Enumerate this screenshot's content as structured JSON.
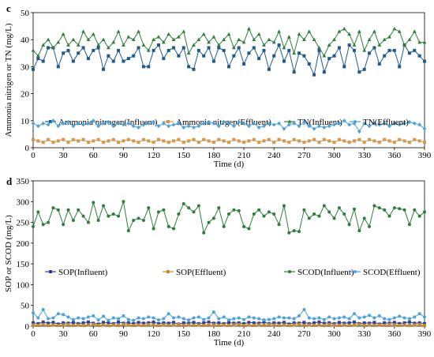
{
  "chart_data": [
    {
      "panel": "c",
      "type": "line",
      "xlabel": "Time (d)",
      "ylabel": "Ammonia nitrigen or TN (mg/L)",
      "xlim": [
        0,
        390
      ],
      "ylim": [
        0,
        50
      ],
      "xticks": [
        0,
        30,
        60,
        90,
        120,
        150,
        180,
        210,
        240,
        270,
        300,
        330,
        360,
        390
      ],
      "yticks": [
        0,
        10,
        20,
        30,
        40,
        50
      ],
      "x": [
        0,
        5,
        10,
        15,
        20,
        25,
        30,
        35,
        40,
        45,
        50,
        55,
        60,
        65,
        70,
        75,
        80,
        85,
        90,
        95,
        100,
        105,
        110,
        115,
        120,
        125,
        130,
        135,
        140,
        145,
        150,
        155,
        160,
        165,
        170,
        175,
        180,
        185,
        190,
        195,
        200,
        205,
        210,
        215,
        220,
        225,
        230,
        235,
        240,
        245,
        250,
        255,
        260,
        265,
        270,
        275,
        280,
        285,
        290,
        295,
        300,
        305,
        310,
        315,
        320,
        325,
        330,
        335,
        340,
        345,
        350,
        355,
        360,
        365,
        370,
        375,
        380,
        385,
        390
      ],
      "legend_position": "middle",
      "series": [
        {
          "name": "Ammonia nitrogen(Influent)",
          "color": "#1f5a8c",
          "marker": "square",
          "values": [
            29,
            33,
            32,
            37,
            37,
            30,
            35,
            36,
            32,
            35,
            37,
            33,
            36,
            37,
            29,
            34,
            32,
            36,
            32,
            33,
            34,
            37,
            30,
            30,
            36,
            38,
            33,
            36,
            37,
            34,
            37,
            30,
            29,
            36,
            34,
            37,
            32,
            37,
            36,
            30,
            34,
            37,
            31,
            35,
            37,
            33,
            36,
            29,
            34,
            38,
            32,
            36,
            28,
            35,
            34,
            31,
            27,
            36,
            28,
            33,
            34,
            37,
            30,
            38,
            36,
            28,
            29,
            35,
            37,
            31,
            34,
            36,
            36,
            30,
            38,
            35,
            36,
            34,
            32
          ]
        },
        {
          "name": "Ammonia nitrgen(Effluent)",
          "color": "#d9964a",
          "marker": "square",
          "values": [
            3,
            2.5,
            2,
            3,
            2,
            2.5,
            3,
            2,
            3,
            2.5,
            3,
            2,
            2.5,
            3,
            2,
            2.5,
            3,
            2,
            2.5,
            3,
            2.5,
            2,
            3,
            2.5,
            2,
            3,
            2.5,
            2,
            2.5,
            3,
            2,
            2.5,
            3,
            2,
            3,
            2.5,
            2,
            3,
            2.5,
            2,
            3,
            2.5,
            2,
            2.5,
            3,
            2,
            2.5,
            3,
            2,
            3,
            2.5,
            2,
            3,
            2.5,
            2,
            2.5,
            3,
            2,
            3,
            2.5,
            2,
            3,
            2.5,
            2,
            2.5,
            3,
            2,
            3,
            2.5,
            2,
            3,
            2.5,
            2,
            3,
            2.5,
            2,
            3,
            2.5,
            2
          ]
        },
        {
          "name": "TN(Influent)",
          "color": "#2e7d3b",
          "marker": "triangle",
          "values": [
            36,
            34,
            38,
            40,
            37,
            39,
            42,
            38,
            40,
            38,
            43,
            40,
            42,
            38,
            40,
            37,
            39,
            43,
            38,
            41,
            40,
            43,
            38,
            36,
            40,
            41,
            39,
            42,
            40,
            41,
            43,
            35,
            38,
            40,
            42,
            39,
            41,
            38,
            40,
            42,
            37,
            40,
            39,
            44,
            40,
            42,
            38,
            40,
            39,
            43,
            37,
            41,
            35,
            42,
            40,
            43,
            40,
            37,
            34,
            38,
            40,
            43,
            44,
            42,
            38,
            43,
            36,
            40,
            43,
            38,
            40,
            41,
            44,
            43,
            38,
            40,
            43,
            39,
            39
          ]
        },
        {
          "name": "TN(Effluent)",
          "color": "#4aa3dc",
          "marker": "diamond",
          "values": [
            9,
            8,
            9,
            8.5,
            10,
            8,
            9,
            9.5,
            8,
            9,
            8.5,
            9,
            10,
            8,
            9,
            9.5,
            8,
            9,
            8.5,
            9,
            8,
            7.5,
            8.5,
            9,
            9.5,
            8,
            9,
            8,
            8.5,
            9,
            7.5,
            8,
            7.5,
            8,
            9,
            9.5,
            9,
            8,
            9.5,
            9,
            8,
            9.5,
            9,
            8,
            9,
            7.5,
            8,
            9,
            8.5,
            9,
            7,
            8.5,
            9,
            8,
            9.5,
            8,
            7,
            8,
            7.5,
            8,
            8.5,
            9,
            10,
            8.5,
            9,
            6,
            9,
            8,
            9,
            8.5,
            9,
            8,
            9,
            8.5,
            9,
            9.5,
            9,
            8.5,
            7
          ]
        }
      ]
    },
    {
      "panel": "d",
      "type": "line",
      "xlabel": "Time (d)",
      "ylabel": "SOP or SCOD (mg/L)",
      "xlim": [
        0,
        390
      ],
      "ylim": [
        0,
        350
      ],
      "xticks": [
        0,
        30,
        60,
        90,
        120,
        150,
        180,
        210,
        240,
        270,
        300,
        330,
        360,
        390
      ],
      "yticks": [
        0,
        50,
        100,
        150,
        200,
        250,
        300,
        350
      ],
      "x": [
        0,
        5,
        10,
        15,
        20,
        25,
        30,
        35,
        40,
        45,
        50,
        55,
        60,
        65,
        70,
        75,
        80,
        85,
        90,
        95,
        100,
        105,
        110,
        115,
        120,
        125,
        130,
        135,
        140,
        145,
        150,
        155,
        160,
        165,
        170,
        175,
        180,
        185,
        190,
        195,
        200,
        205,
        210,
        215,
        220,
        225,
        230,
        235,
        240,
        245,
        250,
        255,
        260,
        265,
        270,
        275,
        280,
        285,
        290,
        295,
        300,
        305,
        310,
        315,
        320,
        325,
        330,
        335,
        340,
        345,
        350,
        355,
        360,
        365,
        370,
        375,
        380,
        385,
        390
      ],
      "legend_position": "middle",
      "series": [
        {
          "name": "SOP(Influent)",
          "color": "#2f3f9e",
          "marker": "square",
          "values": [
            8,
            6,
            10,
            7,
            9,
            5,
            8,
            7,
            9,
            6,
            8,
            10,
            7,
            5,
            9,
            8,
            6,
            10,
            7,
            8,
            6,
            9,
            7,
            8,
            10,
            6,
            8,
            7,
            9,
            5,
            8,
            7,
            9,
            6,
            8,
            10,
            7,
            8,
            6,
            9,
            7,
            8,
            6,
            9,
            8,
            7,
            10,
            6,
            8,
            7,
            9,
            5,
            8,
            7,
            9,
            6,
            8,
            10,
            7,
            8,
            6,
            9,
            7,
            8,
            10,
            6,
            8,
            7,
            9,
            5,
            8,
            7,
            9,
            6,
            8,
            10,
            7,
            8,
            6
          ]
        },
        {
          "name": "SOP(Effluent)",
          "color": "#c48a2a",
          "marker": "square",
          "values": [
            3,
            2,
            4,
            2,
            3,
            2,
            3,
            4,
            2,
            3,
            2,
            3,
            4,
            2,
            3,
            2,
            3,
            2,
            4,
            3,
            2,
            3,
            2,
            4,
            3,
            2,
            3,
            2,
            3,
            4,
            2,
            3,
            2,
            3,
            2,
            4,
            3,
            2,
            3,
            2,
            3,
            4,
            2,
            3,
            2,
            3,
            2,
            4,
            3,
            2,
            3,
            2,
            3,
            4,
            2,
            3,
            2,
            3,
            2,
            4,
            3,
            2,
            3,
            2,
            3,
            4,
            2,
            3,
            2,
            3,
            2,
            4,
            3,
            2,
            3,
            2,
            3,
            4,
            2
          ]
        },
        {
          "name": "SCOD(Influent)",
          "color": "#2e7d3b",
          "marker": "circle",
          "values": [
            240,
            275,
            245,
            250,
            285,
            280,
            245,
            280,
            255,
            280,
            265,
            250,
            298,
            255,
            290,
            265,
            270,
            265,
            300,
            230,
            255,
            260,
            255,
            285,
            235,
            275,
            280,
            240,
            235,
            270,
            295,
            285,
            275,
            290,
            225,
            250,
            260,
            285,
            240,
            270,
            280,
            278,
            240,
            235,
            270,
            280,
            265,
            275,
            270,
            245,
            290,
            225,
            230,
            228,
            280,
            260,
            270,
            265,
            290,
            275,
            260,
            285,
            270,
            245,
            282,
            230,
            260,
            240,
            290,
            285,
            280,
            265,
            285,
            283,
            280,
            245,
            280,
            265,
            275
          ]
        },
        {
          "name": "SCOD(Effluent)",
          "color": "#4aa3dc",
          "marker": "circle",
          "values": [
            32,
            20,
            40,
            18,
            20,
            30,
            28,
            22,
            16,
            20,
            18,
            22,
            25,
            15,
            24,
            14,
            20,
            18,
            25,
            16,
            14,
            20,
            18,
            22,
            20,
            15,
            18,
            30,
            20,
            22,
            18,
            15,
            20,
            22,
            16,
            20,
            34,
            18,
            22,
            15,
            18,
            20,
            16,
            22,
            20,
            18,
            15,
            16,
            18,
            22,
            20,
            20,
            18,
            25,
            40,
            20,
            18,
            20,
            16,
            22,
            18,
            20,
            22,
            18,
            30,
            20,
            22,
            26,
            20,
            25,
            18,
            16,
            20,
            24,
            20,
            18,
            22,
            30,
            22
          ]
        }
      ]
    }
  ]
}
